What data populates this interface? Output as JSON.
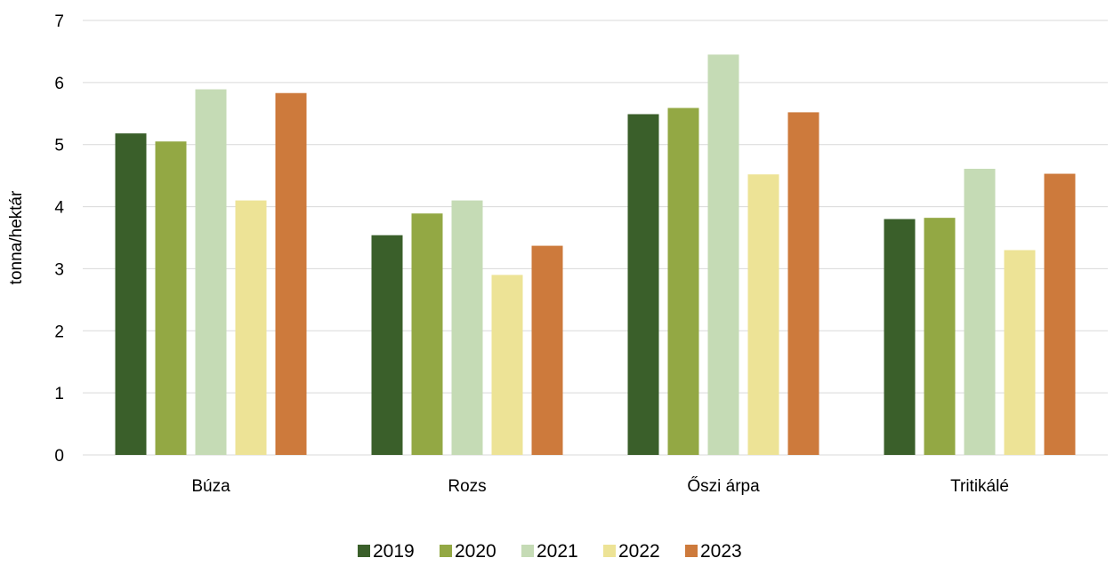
{
  "chart_data": {
    "type": "bar",
    "categories": [
      "Búza",
      "Rozs",
      "Őszi árpa",
      "Tritikálé"
    ],
    "series": [
      {
        "name": "2019",
        "color": "#3a5f2a",
        "values": [
          5.18,
          3.54,
          5.49,
          3.8
        ]
      },
      {
        "name": "2020",
        "color": "#93a844",
        "values": [
          5.05,
          3.89,
          5.59,
          3.82
        ]
      },
      {
        "name": "2021",
        "color": "#c5dbb5",
        "values": [
          5.89,
          4.1,
          6.45,
          4.61
        ]
      },
      {
        "name": "2022",
        "color": "#ede396",
        "values": [
          4.1,
          2.9,
          4.52,
          3.3
        ]
      },
      {
        "name": "2023",
        "color": "#cd7a3c",
        "values": [
          5.83,
          3.37,
          5.52,
          4.53
        ]
      }
    ],
    "title": "",
    "xlabel": "",
    "ylabel": "tonna/hektár",
    "ylim": [
      0,
      7
    ],
    "yticks": [
      0,
      1,
      2,
      3,
      4,
      5,
      6,
      7
    ],
    "grid": true,
    "legend_position": "bottom"
  }
}
